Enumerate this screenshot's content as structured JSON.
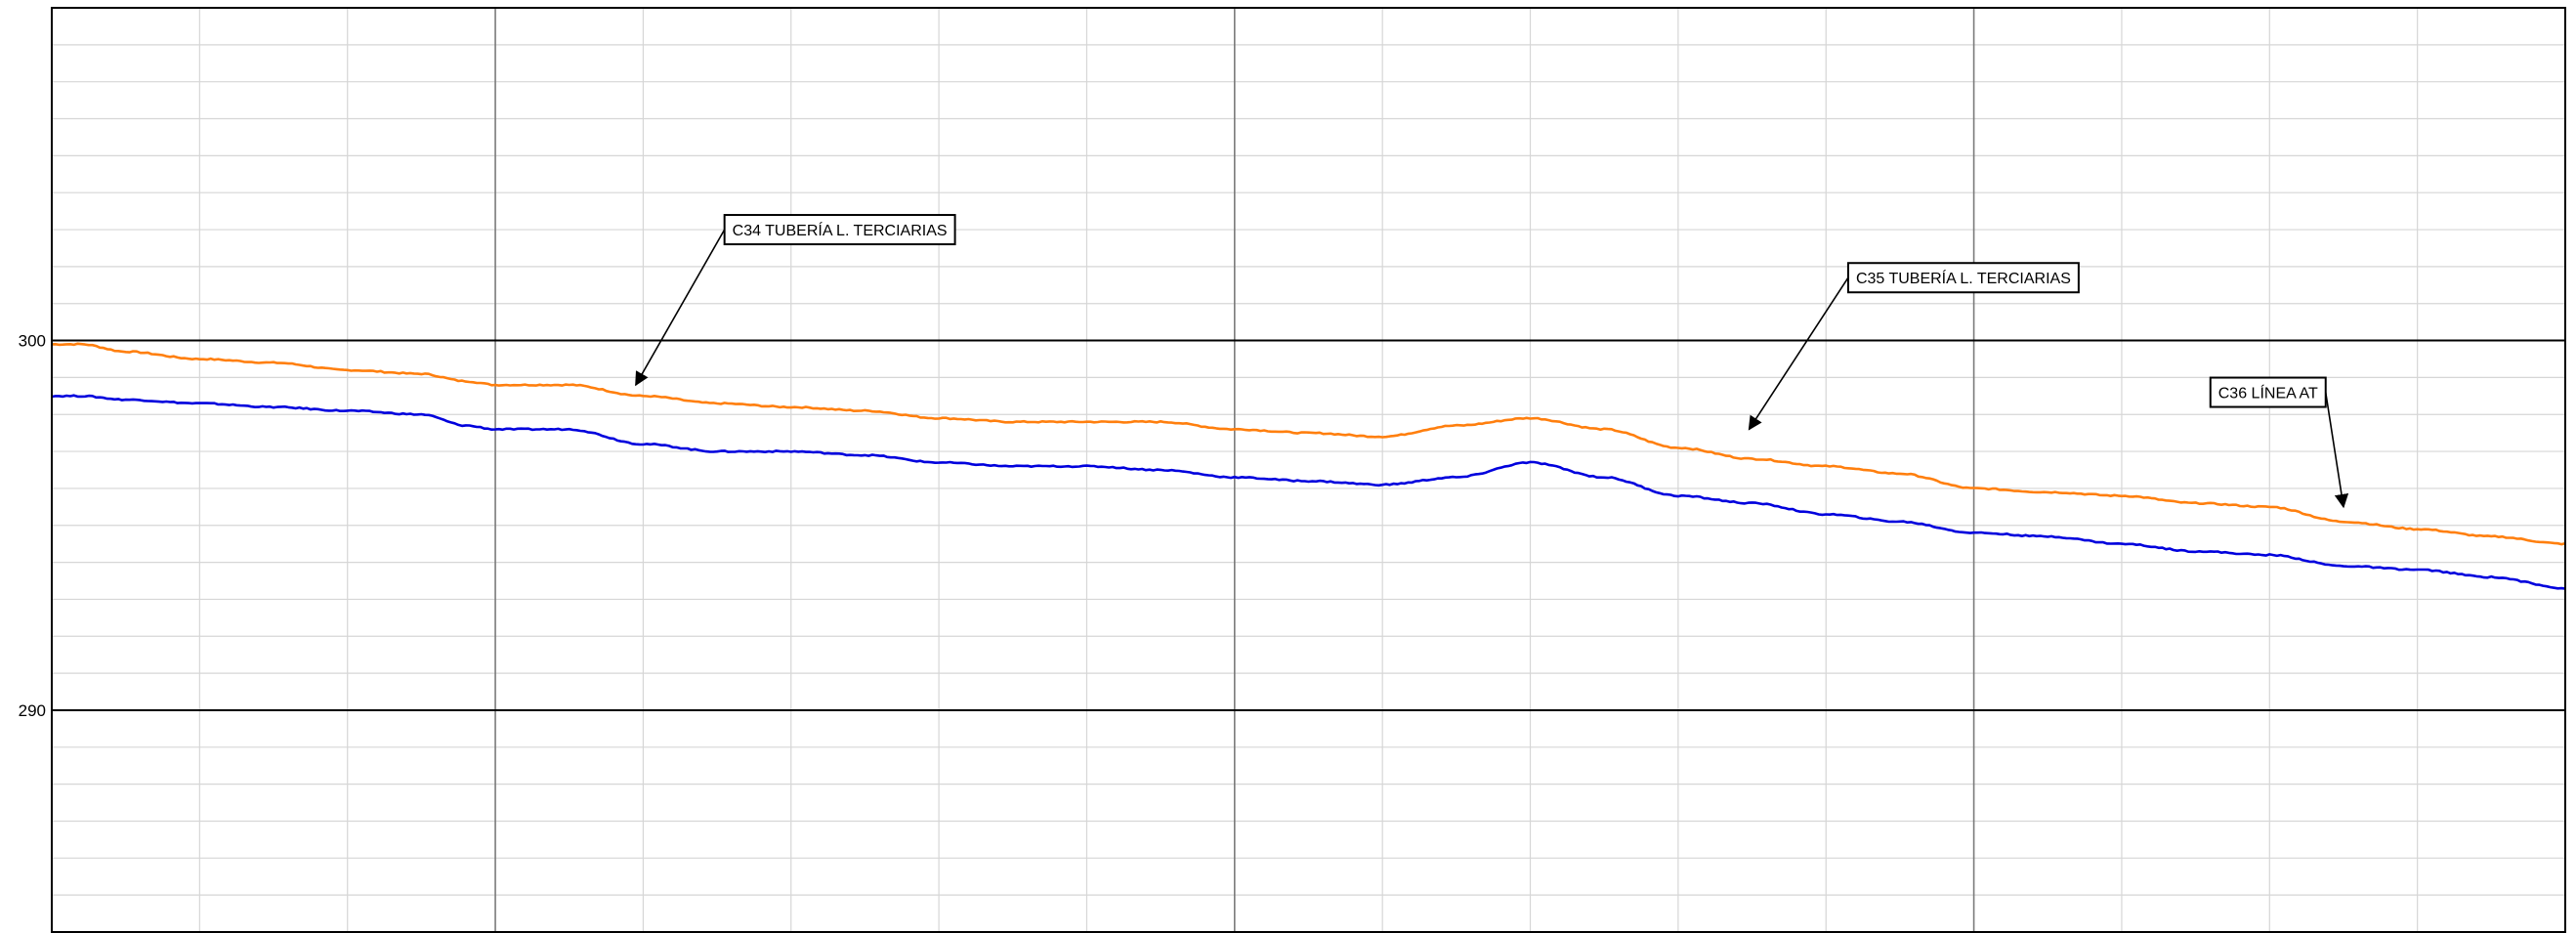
{
  "chart_data": {
    "type": "line",
    "title": "",
    "xlabel": "",
    "ylabel": "",
    "grid": true,
    "legend": "none",
    "x": [
      0,
      2,
      5,
      10,
      15,
      20,
      25,
      28,
      30,
      35,
      40,
      45,
      50,
      55,
      60,
      65,
      70,
      75,
      80,
      85,
      90,
      95,
      100,
      105,
      110,
      115,
      120,
      125,
      130,
      135,
      140,
      145,
      150,
      155,
      160,
      165,
      170
    ],
    "xlim": [
      0,
      170
    ],
    "ylim": [
      284,
      309
    ],
    "yticks": [
      {
        "value": 300,
        "label": "300"
      },
      {
        "value": 290,
        "label": "290"
      }
    ],
    "series": [
      {
        "color": "#ff7f0e",
        "values": [
          299.9,
          299.9,
          299.7,
          299.5,
          299.4,
          299.2,
          299.1,
          298.9,
          298.8,
          298.8,
          298.5,
          298.3,
          298.2,
          298.1,
          297.9,
          297.8,
          297.8,
          297.8,
          297.6,
          297.5,
          297.4,
          297.7,
          297.9,
          297.6,
          297.1,
          296.8,
          296.6,
          296.4,
          296.0,
          295.9,
          295.8,
          295.6,
          295.5,
          295.1,
          294.9,
          294.7,
          294.5
        ]
      },
      {
        "color": "#0000dd",
        "values": [
          298.5,
          298.5,
          298.4,
          298.3,
          298.2,
          298.1,
          298.0,
          297.7,
          297.6,
          297.6,
          297.2,
          297.0,
          297.0,
          296.9,
          296.7,
          296.6,
          296.6,
          296.5,
          296.3,
          296.2,
          296.1,
          296.3,
          296.7,
          296.3,
          295.8,
          295.6,
          295.3,
          295.1,
          294.8,
          294.7,
          294.5,
          294.3,
          294.2,
          293.9,
          293.8,
          293.6,
          293.3
        ]
      }
    ],
    "annotations": [
      {
        "text": "C34 TUBERÍA L. TERCIARIAS",
        "x": 39.5,
        "y": 298.8,
        "label_x": 45.5,
        "label_y": 303.0
      },
      {
        "text": "C35 TUBERÍA L. TERCIARIAS",
        "x": 114.8,
        "y": 297.6,
        "label_x": 121.5,
        "label_y": 301.7
      },
      {
        "text": "C36 LÍNEA AT",
        "x": 155.0,
        "y": 295.5,
        "label_x": 146.0,
        "label_y": 298.6
      }
    ]
  }
}
